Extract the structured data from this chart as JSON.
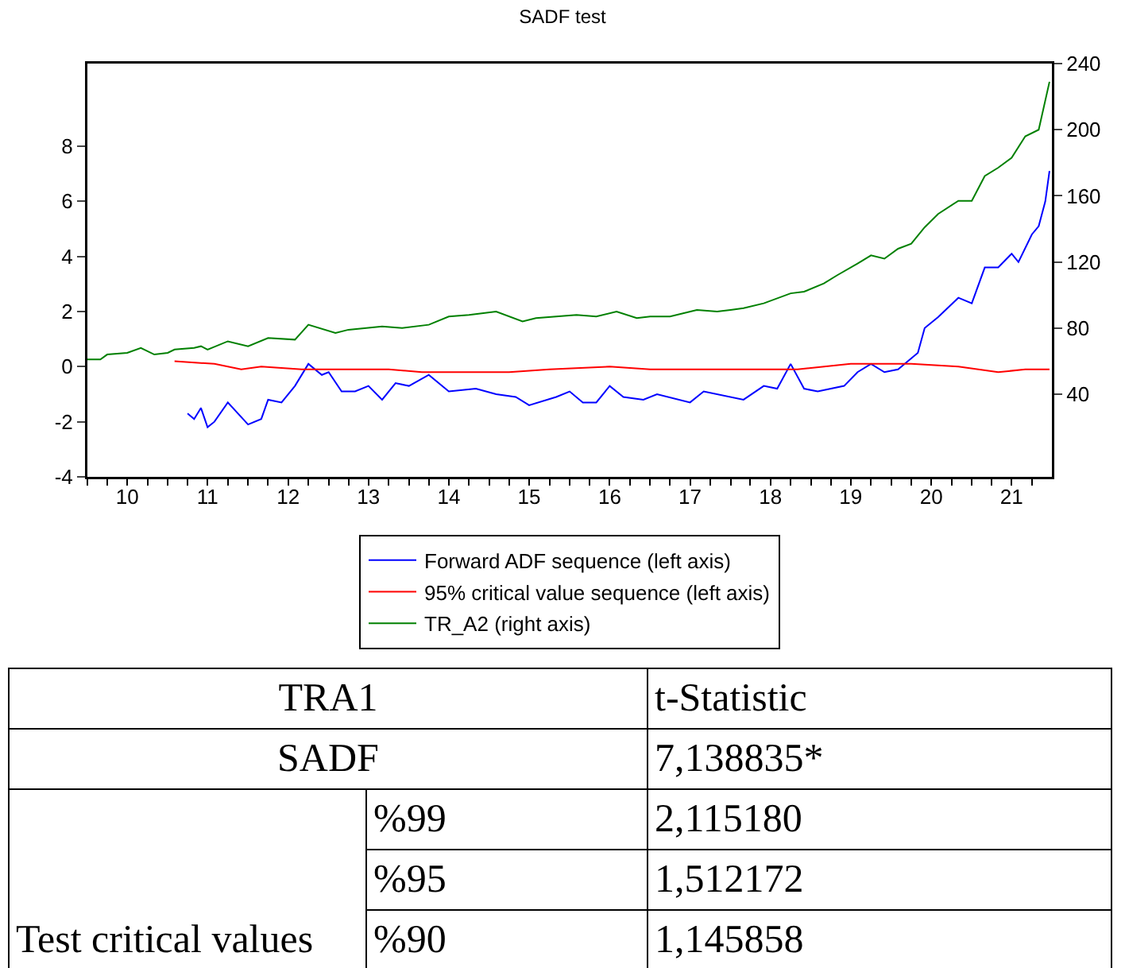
{
  "chart_data": [
    {
      "type": "line",
      "title": "SADF test",
      "xlim": [
        "2010-01-01",
        "2021-12-31"
      ],
      "xticks": [
        {
          "value": "2010-07",
          "label": "10"
        },
        {
          "value": "2011-07",
          "label": "11"
        },
        {
          "value": "2012-07",
          "label": "12"
        },
        {
          "value": "2013-07",
          "label": "13"
        },
        {
          "value": "2014-07",
          "label": "14"
        },
        {
          "value": "2015-07",
          "label": "15"
        },
        {
          "value": "2016-07",
          "label": "16"
        },
        {
          "value": "2017-07",
          "label": "17"
        },
        {
          "value": "2018-07",
          "label": "18"
        },
        {
          "value": "2019-07",
          "label": "19"
        },
        {
          "value": "2020-07",
          "label": "20"
        },
        {
          "value": "2021-07",
          "label": "21"
        }
      ],
      "ylim": [
        -4,
        11
      ],
      "yticks": [
        -4,
        -2,
        0,
        2,
        4,
        6,
        8
      ],
      "y2lim": [
        -10,
        240
      ],
      "y2ticks": [
        40,
        80,
        120,
        160,
        200,
        240
      ],
      "grid": false,
      "legend": "bottom",
      "series": [
        {
          "name": "Forward ADF sequence (left axis)",
          "color": "#0000ff",
          "x": [
            "2011-04",
            "2011-05",
            "2011-06",
            "2011-07",
            "2011-08",
            "2011-10",
            "2012-01",
            "2012-03",
            "2012-04",
            "2012-06",
            "2012-08",
            "2012-10",
            "2012-12",
            "2013-01",
            "2013-03",
            "2013-05",
            "2013-07",
            "2013-09",
            "2013-11",
            "2014-01",
            "2014-04",
            "2014-07",
            "2014-11",
            "2015-02",
            "2015-05",
            "2015-07",
            "2015-11",
            "2016-01",
            "2016-03",
            "2016-05",
            "2016-07",
            "2016-09",
            "2016-12",
            "2017-02",
            "2017-07",
            "2017-09",
            "2018-03",
            "2018-06",
            "2018-08",
            "2018-10",
            "2018-12",
            "2019-02",
            "2019-06",
            "2019-08",
            "2019-10",
            "2019-12",
            "2020-02",
            "2020-05",
            "2020-06",
            "2020-08",
            "2020-11",
            "2021-01",
            "2021-03",
            "2021-05",
            "2021-07",
            "2021-08",
            "2021-10",
            "2021-11",
            "2021-12-01",
            "2021-12-20"
          ],
          "values": [
            -1.7,
            -1.9,
            -1.5,
            -2.2,
            -2.0,
            -1.3,
            -2.1,
            -1.9,
            -1.2,
            -1.3,
            -0.7,
            0.1,
            -0.3,
            -0.2,
            -0.9,
            -0.9,
            -0.7,
            -1.2,
            -0.6,
            -0.7,
            -0.3,
            -0.9,
            -0.8,
            -1.0,
            -1.1,
            -1.4,
            -1.1,
            -0.9,
            -1.3,
            -1.3,
            -0.7,
            -1.1,
            -1.2,
            -1.0,
            -1.3,
            -0.9,
            -1.2,
            -0.7,
            -0.8,
            0.1,
            -0.8,
            -0.9,
            -0.7,
            -0.2,
            0.1,
            -0.2,
            -0.1,
            0.5,
            1.4,
            1.8,
            2.5,
            2.3,
            3.6,
            3.6,
            4.1,
            3.8,
            4.8,
            5.1,
            6.0,
            7.1
          ]
        },
        {
          "name": "95% critical value sequence (left axis)",
          "color": "#ff0000",
          "x": [
            "2011-02",
            "2011-08",
            "2011-12",
            "2012-03",
            "2012-09",
            "2013-04",
            "2013-10",
            "2014-03",
            "2014-10",
            "2015-04",
            "2015-10",
            "2016-07",
            "2017-01",
            "2017-08",
            "2018-02",
            "2018-11",
            "2019-07",
            "2020-04",
            "2020-11",
            "2021-05",
            "2021-09",
            "2021-12-20"
          ],
          "values": [
            0.2,
            0.1,
            -0.1,
            0.0,
            -0.1,
            -0.1,
            -0.1,
            -0.2,
            -0.2,
            -0.2,
            -0.1,
            0.0,
            -0.1,
            -0.1,
            -0.1,
            -0.1,
            0.1,
            0.1,
            0.0,
            -0.2,
            -0.1,
            -0.1
          ]
        },
        {
          "name": "TR_A2 (right axis)",
          "color": "#008000",
          "axis": "y2",
          "x": [
            "2010-01",
            "2010-03",
            "2010-04",
            "2010-07",
            "2010-09",
            "2010-11",
            "2011-01",
            "2011-02",
            "2011-05",
            "2011-06",
            "2011-07",
            "2011-10",
            "2012-01",
            "2012-04",
            "2012-08",
            "2012-10",
            "2013-02",
            "2013-04",
            "2013-09",
            "2013-12",
            "2014-04",
            "2014-07",
            "2014-10",
            "2015-02",
            "2015-06",
            "2015-08",
            "2015-11",
            "2016-02",
            "2016-05",
            "2016-08",
            "2016-11",
            "2017-01",
            "2017-04",
            "2017-08",
            "2017-11",
            "2018-01",
            "2018-03",
            "2018-06",
            "2018-10",
            "2018-12",
            "2019-03",
            "2019-05",
            "2019-08",
            "2019-10",
            "2019-12",
            "2020-02",
            "2020-04",
            "2020-06",
            "2020-08",
            "2020-11",
            "2021-01",
            "2021-03",
            "2021-05",
            "2021-07",
            "2021-09",
            "2021-11",
            "2021-12-20"
          ],
          "values": [
            61,
            61,
            64,
            65,
            68,
            64,
            65,
            67,
            68,
            69,
            67,
            72,
            69,
            74,
            73,
            82,
            77,
            79,
            81,
            80,
            82,
            87,
            88,
            90,
            84,
            86,
            87,
            88,
            87,
            90,
            86,
            87,
            87,
            91,
            90,
            91,
            92,
            95,
            101,
            102,
            107,
            112,
            119,
            124,
            122,
            128,
            131,
            141,
            149,
            157,
            157,
            172,
            177,
            183,
            196,
            200,
            229
          ]
        }
      ]
    },
    {
      "type": "other",
      "annotations": [
        "TRA1",
        "t-Statistic",
        "SADF",
        "7,138835*",
        "Test critical values",
        "%99",
        "2,115180",
        "%95",
        "1,512172",
        "%90",
        "1,145858"
      ]
    }
  ]
}
